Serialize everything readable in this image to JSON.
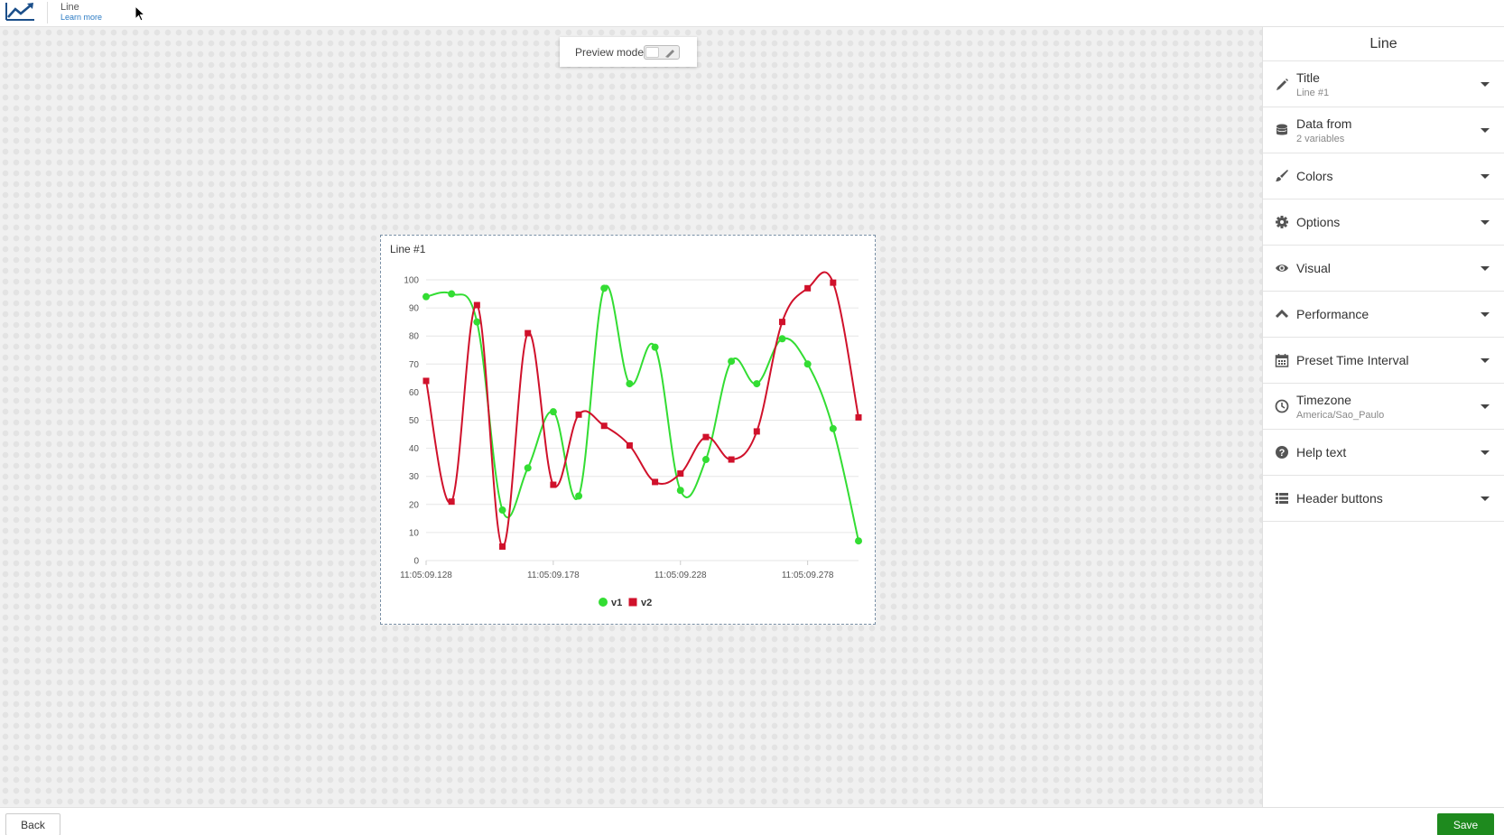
{
  "header": {
    "app_title": "Line",
    "learn_more": "Learn more"
  },
  "preview": {
    "label": "Preview mode",
    "enabled": false
  },
  "widget": {
    "title": "Line #1"
  },
  "chart_data": {
    "type": "line",
    "title": "Line #1",
    "xlabel": "",
    "ylabel": "",
    "ylim": [
      0,
      100
    ],
    "y_ticks": [
      0,
      10,
      20,
      30,
      40,
      50,
      60,
      70,
      80,
      90,
      100
    ],
    "x_tick_labels": [
      "11:05:09.128",
      "11:05:09.178",
      "11:05:09.228",
      "11:05:09.278"
    ],
    "x_tick_indices": [
      0,
      5,
      10,
      15
    ],
    "x_point_count": 18,
    "grid": true,
    "legend_position": "bottom-center",
    "series": [
      {
        "name": "v1",
        "color": "#33dd33",
        "marker": "circle",
        "values": [
          94,
          95,
          85,
          18,
          33,
          53,
          23,
          97,
          63,
          76,
          25,
          36,
          71,
          63,
          79,
          70,
          47,
          7
        ]
      },
      {
        "name": "v2",
        "color": "#d0112b",
        "marker": "square",
        "values": [
          64,
          21,
          91,
          5,
          81,
          27,
          52,
          48,
          41,
          28,
          31,
          44,
          36,
          46,
          85,
          97,
          99,
          51
        ]
      }
    ]
  },
  "panel": {
    "heading": "Line",
    "sections": [
      {
        "label": "Title",
        "sub": "Line #1",
        "icon": "pencil-icon"
      },
      {
        "label": "Data from",
        "sub": "2 variables",
        "icon": "database-icon"
      },
      {
        "label": "Colors",
        "icon": "brush-icon"
      },
      {
        "label": "Options",
        "icon": "gear-icon"
      },
      {
        "label": "Visual",
        "icon": "eye-icon"
      },
      {
        "label": "Performance",
        "icon": "chevron-up-icon"
      },
      {
        "label": "Preset Time Interval",
        "icon": "calendar-icon"
      },
      {
        "label": "Timezone",
        "sub": "America/Sao_Paulo",
        "icon": "clock-icon"
      },
      {
        "label": "Help text",
        "icon": "question-icon"
      },
      {
        "label": "Header buttons",
        "icon": "list-icon"
      }
    ]
  },
  "footer": {
    "back_label": "Back",
    "save_label": "Save",
    "save_color": "#1e8a1e"
  }
}
